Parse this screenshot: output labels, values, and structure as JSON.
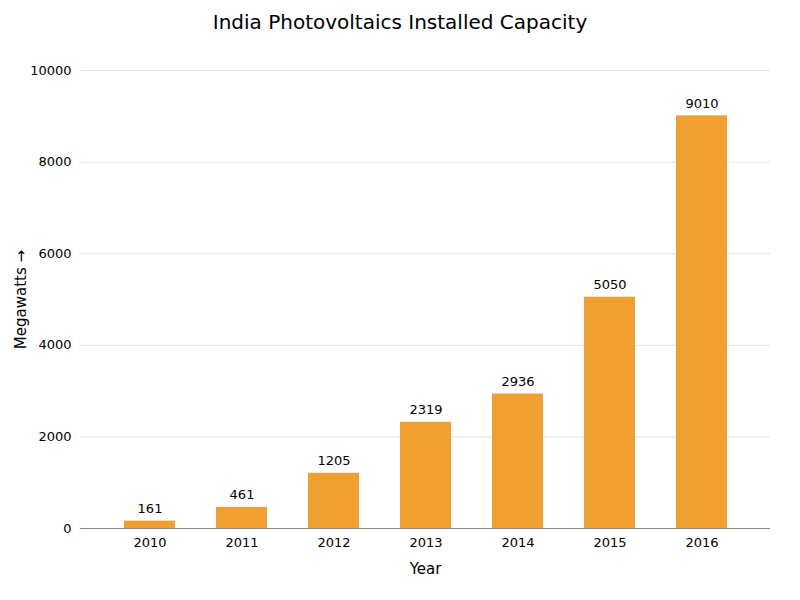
{
  "chart_data": {
    "type": "bar",
    "title": "India Photovoltaics Installed Capacity",
    "xlabel": "Year",
    "ylabel": "Megawatts",
    "categories": [
      "2010",
      "2011",
      "2012",
      "2013",
      "2014",
      "2015",
      "2016"
    ],
    "values": [
      161,
      461,
      1205,
      2319,
      2936,
      5050,
      9010
    ],
    "color": "#F0A030",
    "ylim": [
      0,
      10000
    ],
    "yticks": [
      0,
      2000,
      4000,
      6000,
      8000,
      10000
    ],
    "grid": true,
    "data_labels": true
  }
}
